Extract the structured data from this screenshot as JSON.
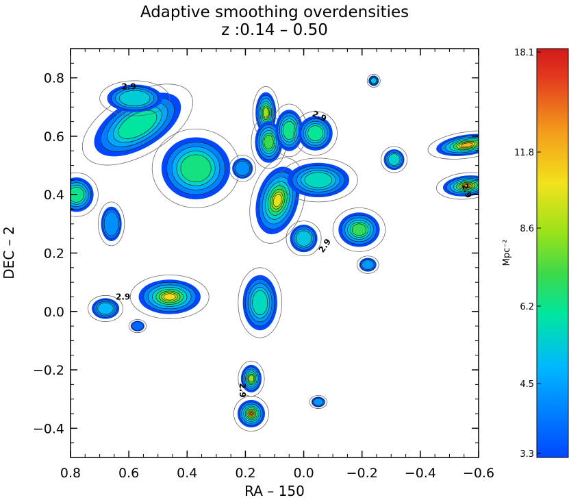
{
  "chart_data": {
    "type": "contour",
    "title": "Adaptive smoothing overdensities",
    "subtitle": "z :0.14 – 0.50",
    "xlabel": "RA – 150",
    "ylabel": "DEC – 2",
    "xlim": [
      0.8,
      -0.6
    ],
    "ylim": [
      -0.5,
      0.9
    ],
    "xticks": [
      {
        "value": 0.8,
        "label": "0.8"
      },
      {
        "value": 0.6,
        "label": "0.6"
      },
      {
        "value": 0.4,
        "label": "0.4"
      },
      {
        "value": 0.2,
        "label": "0.2"
      },
      {
        "value": 0.0,
        "label": "0.0"
      },
      {
        "value": -0.2,
        "label": "−0.2"
      },
      {
        "value": -0.4,
        "label": "−0.4"
      },
      {
        "value": -0.6,
        "label": "−0.6"
      }
    ],
    "yticks": [
      {
        "value": 0.8,
        "label": "0.8"
      },
      {
        "value": 0.6,
        "label": "0.6"
      },
      {
        "value": 0.4,
        "label": "0.4"
      },
      {
        "value": 0.2,
        "label": "0.2"
      },
      {
        "value": 0.0,
        "label": "0.0"
      },
      {
        "value": -0.2,
        "label": "−0.2"
      },
      {
        "value": -0.4,
        "label": "−0.4"
      }
    ],
    "colorbar": {
      "label": "Mpc⁻²",
      "min": 3.3,
      "max": 18.1,
      "ticks": [
        {
          "value": 18.1,
          "label": "18.1"
        },
        {
          "value": 11.8,
          "label": "11.8"
        },
        {
          "value": 8.6,
          "label": "8.6"
        },
        {
          "value": 6.2,
          "label": "6.2"
        },
        {
          "value": 4.5,
          "label": "4.5"
        },
        {
          "value": 3.3,
          "label": "3.3"
        }
      ]
    },
    "contour_labels": [
      {
        "text": "2.9",
        "x": 0.6,
        "y": 0.76,
        "rot": 0
      },
      {
        "text": "2.9",
        "x": -0.05,
        "y": 0.66,
        "rot": 25
      },
      {
        "text": "2.9",
        "x": -0.55,
        "y": 0.41,
        "rot": 70
      },
      {
        "text": "2.9",
        "x": -0.08,
        "y": 0.22,
        "rot": -55
      },
      {
        "text": "2.9",
        "x": 0.62,
        "y": 0.04,
        "rot": 0
      },
      {
        "text": "2.9",
        "x": 0.22,
        "y": -0.27,
        "rot": 90
      }
    ],
    "clumps": [
      {
        "x": 0.57,
        "y": 0.64,
        "rx": 0.14,
        "ry": 0.07,
        "rot": -30,
        "peak": 8.6
      },
      {
        "x": 0.37,
        "y": 0.49,
        "rx": 0.1,
        "ry": 0.09,
        "rot": 0,
        "peak": 9.2
      },
      {
        "x": 0.58,
        "y": 0.73,
        "rx": 0.08,
        "ry": 0.04,
        "rot": 0,
        "peak": 7.4
      },
      {
        "x": 0.78,
        "y": 0.4,
        "rx": 0.05,
        "ry": 0.05,
        "rot": 0,
        "peak": 9.0
      },
      {
        "x": 0.66,
        "y": 0.3,
        "rx": 0.03,
        "ry": 0.05,
        "rot": 0,
        "peak": 5.4
      },
      {
        "x": 0.13,
        "y": 0.68,
        "rx": 0.03,
        "ry": 0.06,
        "rot": 0,
        "peak": 12.0
      },
      {
        "x": 0.12,
        "y": 0.58,
        "rx": 0.04,
        "ry": 0.06,
        "rot": 0,
        "peak": 10.2
      },
      {
        "x": 0.05,
        "y": 0.62,
        "rx": 0.04,
        "ry": 0.06,
        "rot": 0,
        "peak": 9.0
      },
      {
        "x": -0.04,
        "y": 0.61,
        "rx": 0.05,
        "ry": 0.05,
        "rot": 0,
        "peak": 8.8
      },
      {
        "x": 0.09,
        "y": 0.38,
        "rx": 0.06,
        "ry": 0.1,
        "rot": 15,
        "peak": 13.6
      },
      {
        "x": -0.05,
        "y": 0.45,
        "rx": 0.09,
        "ry": 0.05,
        "rot": 0,
        "peak": 8.0
      },
      {
        "x": 0.0,
        "y": 0.25,
        "rx": 0.04,
        "ry": 0.04,
        "rot": 0,
        "peak": 7.2
      },
      {
        "x": 0.21,
        "y": 0.49,
        "rx": 0.03,
        "ry": 0.03,
        "rot": 0,
        "peak": 5.4
      },
      {
        "x": -0.19,
        "y": 0.28,
        "rx": 0.06,
        "ry": 0.05,
        "rot": 0,
        "peak": 10.0
      },
      {
        "x": -0.24,
        "y": 0.79,
        "rx": 0.015,
        "ry": 0.015,
        "rot": 0,
        "peak": 7.0
      },
      {
        "x": -0.31,
        "y": 0.52,
        "rx": 0.03,
        "ry": 0.03,
        "rot": 0,
        "peak": 7.6
      },
      {
        "x": -0.22,
        "y": 0.16,
        "rx": 0.025,
        "ry": 0.02,
        "rot": 0,
        "peak": 5.6
      },
      {
        "x": -0.56,
        "y": 0.57,
        "rx": 0.09,
        "ry": 0.03,
        "rot": -8,
        "peak": 15.2
      },
      {
        "x": -0.56,
        "y": 0.43,
        "rx": 0.07,
        "ry": 0.03,
        "rot": -5,
        "peak": 16.0
      },
      {
        "x": 0.46,
        "y": 0.05,
        "rx": 0.09,
        "ry": 0.05,
        "rot": 0,
        "peak": 14.0
      },
      {
        "x": 0.68,
        "y": 0.01,
        "rx": 0.04,
        "ry": 0.03,
        "rot": 0,
        "peak": 6.6
      },
      {
        "x": 0.57,
        "y": -0.05,
        "rx": 0.02,
        "ry": 0.015,
        "rot": 0,
        "peak": 4.2
      },
      {
        "x": 0.15,
        "y": 0.03,
        "rx": 0.05,
        "ry": 0.08,
        "rot": 0,
        "peak": 8.0
      },
      {
        "x": 0.18,
        "y": -0.23,
        "rx": 0.03,
        "ry": 0.04,
        "rot": 0,
        "peak": 11.8
      },
      {
        "x": 0.18,
        "y": -0.35,
        "rx": 0.04,
        "ry": 0.04,
        "rot": 0,
        "peak": 17.4
      },
      {
        "x": -0.05,
        "y": -0.31,
        "rx": 0.02,
        "ry": 0.015,
        "rot": 0,
        "peak": 5.6
      }
    ]
  }
}
